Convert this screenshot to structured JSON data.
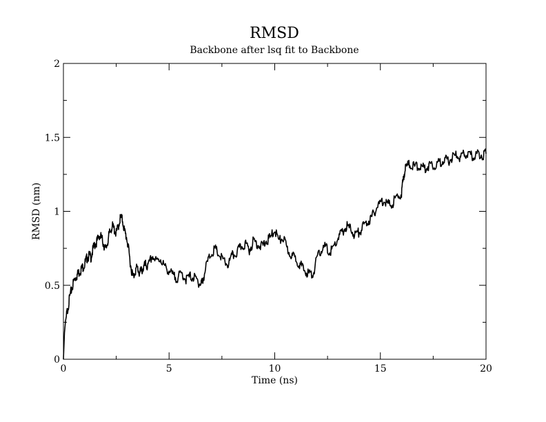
{
  "chart_data": {
    "type": "line",
    "title": "RMSD",
    "subtitle": "Backbone after lsq fit to Backbone",
    "xlabel": "Time (ns)",
    "ylabel": "RMSD (nm)",
    "xlim": [
      0,
      20
    ],
    "ylim": [
      0,
      2
    ],
    "x_ticks": [
      "0",
      "5",
      "10",
      "15",
      "20"
    ],
    "y_ticks": [
      "0",
      "0.5",
      "1",
      "1.5",
      "2"
    ],
    "grid": false,
    "line_color": "#000000",
    "series": [
      {
        "x": [
          0,
          0.05,
          0.1,
          0.2,
          0.3,
          0.4,
          0.5,
          0.6,
          0.7,
          0.8,
          0.9,
          1.0,
          1.1,
          1.2,
          1.3,
          1.4,
          1.5,
          1.6,
          1.7,
          1.8,
          1.9,
          2.0,
          2.1,
          2.2,
          2.3,
          2.4,
          2.5,
          2.6,
          2.7,
          2.8,
          2.9,
          3.0,
          3.1,
          3.2,
          3.3,
          3.4,
          3.5,
          3.6,
          3.7,
          3.8,
          3.9,
          4.0,
          4.2,
          4.4,
          4.6,
          4.8,
          5.0,
          5.2,
          5.4,
          5.6,
          5.8,
          6.0,
          6.2,
          6.4,
          6.5,
          6.6,
          6.8,
          7.0,
          7.2,
          7.4,
          7.6,
          7.8,
          8.0,
          8.2,
          8.4,
          8.6,
          8.8,
          9.0,
          9.2,
          9.4,
          9.6,
          9.8,
          10.0,
          10.2,
          10.4,
          10.6,
          10.8,
          11.0,
          11.2,
          11.4,
          11.6,
          11.8,
          12.0,
          12.2,
          12.4,
          12.6,
          12.8,
          13.0,
          13.2,
          13.4,
          13.6,
          13.8,
          14.0,
          14.2,
          14.4,
          14.6,
          14.8,
          15.0,
          15.2,
          15.4,
          15.6,
          15.8,
          16.0,
          16.1,
          16.2,
          16.4,
          16.6,
          16.8,
          17.0,
          17.2,
          17.4,
          17.6,
          17.8,
          18.0,
          18.2,
          18.4,
          18.6,
          18.8,
          19.0,
          19.2,
          19.4,
          19.6,
          19.8,
          20.0
        ],
        "y": [
          0.0,
          0.18,
          0.26,
          0.34,
          0.42,
          0.48,
          0.53,
          0.56,
          0.58,
          0.6,
          0.62,
          0.64,
          0.68,
          0.7,
          0.69,
          0.74,
          0.78,
          0.8,
          0.84,
          0.82,
          0.78,
          0.74,
          0.8,
          0.86,
          0.9,
          0.88,
          0.85,
          0.9,
          0.96,
          0.94,
          0.86,
          0.82,
          0.72,
          0.62,
          0.55,
          0.6,
          0.62,
          0.58,
          0.6,
          0.62,
          0.64,
          0.62,
          0.7,
          0.66,
          0.68,
          0.62,
          0.6,
          0.56,
          0.55,
          0.58,
          0.54,
          0.56,
          0.55,
          0.52,
          0.5,
          0.54,
          0.65,
          0.72,
          0.74,
          0.7,
          0.66,
          0.64,
          0.7,
          0.72,
          0.76,
          0.78,
          0.74,
          0.8,
          0.78,
          0.76,
          0.8,
          0.82,
          0.88,
          0.8,
          0.82,
          0.74,
          0.7,
          0.68,
          0.64,
          0.6,
          0.58,
          0.57,
          0.68,
          0.74,
          0.76,
          0.72,
          0.76,
          0.82,
          0.86,
          0.9,
          0.88,
          0.84,
          0.86,
          0.9,
          0.93,
          0.96,
          1.02,
          1.06,
          1.08,
          1.04,
          1.06,
          1.1,
          1.12,
          1.24,
          1.3,
          1.32,
          1.3,
          1.31,
          1.29,
          1.3,
          1.32,
          1.31,
          1.33,
          1.35,
          1.34,
          1.36,
          1.38,
          1.36,
          1.39,
          1.38,
          1.37,
          1.39,
          1.38,
          1.39
        ]
      }
    ]
  }
}
